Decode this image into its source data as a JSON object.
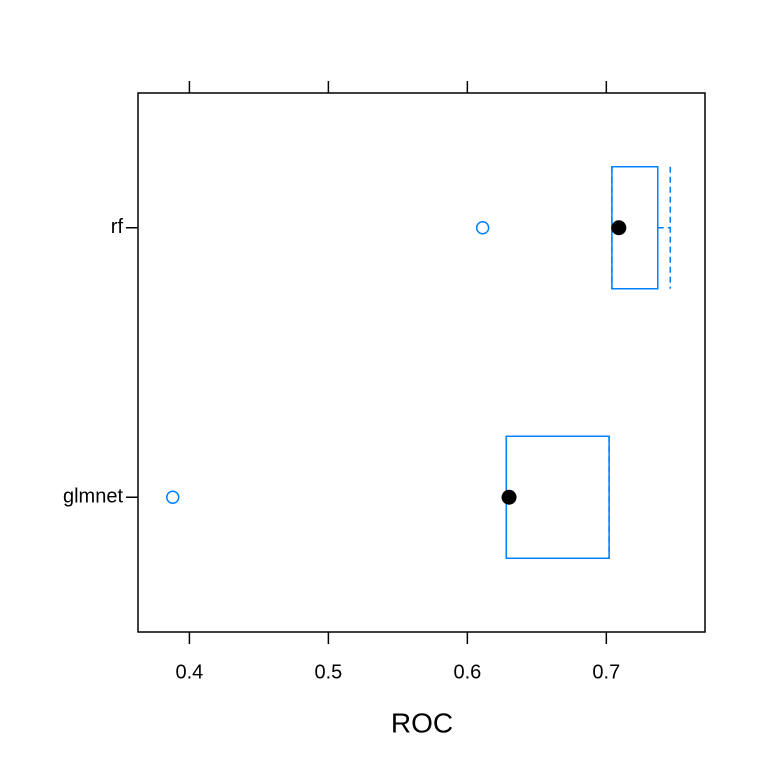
{
  "chart_data": {
    "type": "boxplot",
    "orientation": "horizontal",
    "x_label": "ROC",
    "xlim": [
      0.363,
      0.771
    ],
    "xticks": [
      0.4,
      0.5,
      0.6,
      0.7
    ],
    "color": "#0080ff",
    "median_color": "#000000",
    "boxes": [
      {
        "label": "rf",
        "whislo": 0.704,
        "q1": 0.704,
        "med": 0.709,
        "q3": 0.737,
        "whishi": 0.746,
        "outliers": [
          0.611
        ]
      },
      {
        "label": "glmnet",
        "whislo": 0.628,
        "q1": 0.628,
        "med": 0.63,
        "q3": 0.702,
        "whishi": 0.702,
        "outliers": [
          0.388
        ]
      }
    ]
  }
}
